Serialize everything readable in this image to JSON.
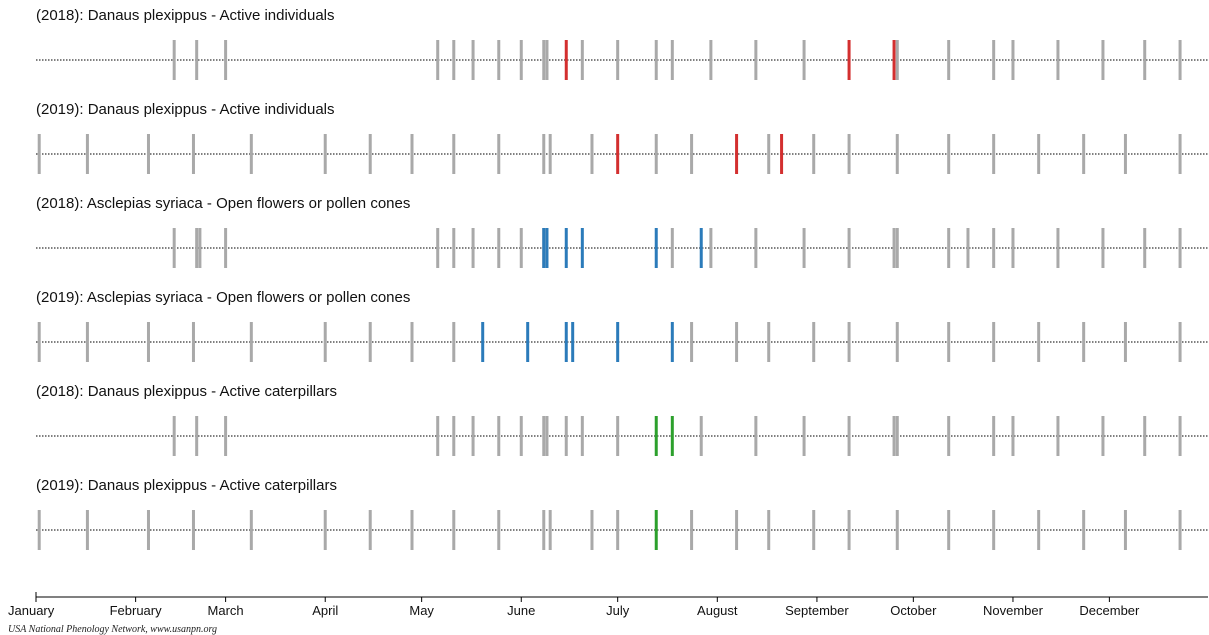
{
  "colors": {
    "no_observation": "#a9a9a9",
    "danaus_adults": "#d32f2f",
    "asclepias_flowers": "#2b7bba",
    "danaus_caterpillars": "#2ca02c",
    "baseline": "#000000"
  },
  "credit": "USA National Phenology Network, www.usanpn.org",
  "chart_data": {
    "type": "scatter",
    "title": "",
    "x_axis": {
      "type": "day-of-year",
      "range": [
        1,
        366
      ],
      "tick_labels": [
        "January",
        "February",
        "March",
        "April",
        "May",
        "June",
        "July",
        "August",
        "September",
        "October",
        "November",
        "December"
      ],
      "tick_days": [
        1,
        32,
        60,
        91,
        121,
        152,
        182,
        213,
        244,
        274,
        305,
        335
      ]
    },
    "series": [
      {
        "name": "(2018): Danaus plexippus - Active individuals",
        "color_key": "danaus_adults",
        "no_days": [
          44,
          51,
          60,
          126,
          131,
          137,
          145,
          152,
          159,
          160,
          171,
          182,
          194,
          199,
          211,
          225,
          240,
          269,
          285,
          299,
          305,
          319,
          333,
          346,
          357
        ],
        "yes_days": [
          166,
          254,
          268
        ]
      },
      {
        "name": "(2019): Danaus plexippus - Active individuals",
        "color_key": "danaus_adults",
        "no_days": [
          2,
          17,
          36,
          50,
          68,
          91,
          105,
          118,
          131,
          145,
          159,
          161,
          174,
          194,
          205,
          229,
          243,
          254,
          269,
          285,
          299,
          313,
          327,
          340,
          357
        ],
        "yes_days": [
          182,
          219,
          233
        ]
      },
      {
        "name": "(2018): Asclepias syriaca - Open flowers or pollen cones",
        "color_key": "asclepias_flowers",
        "no_days": [
          44,
          51,
          52,
          60,
          126,
          131,
          137,
          145,
          152,
          159,
          199,
          211,
          225,
          240,
          254,
          268,
          269,
          285,
          291,
          299,
          305,
          319,
          333,
          346,
          357
        ],
        "yes_days": [
          159,
          160,
          166,
          171,
          194,
          208
        ]
      },
      {
        "name": "(2019): Asclepias syriaca - Open flowers or pollen cones",
        "color_key": "asclepias_flowers",
        "no_days": [
          2,
          17,
          36,
          50,
          68,
          91,
          105,
          118,
          131,
          205,
          219,
          229,
          243,
          254,
          269,
          285,
          299,
          313,
          327,
          340,
          357
        ],
        "yes_days": [
          140,
          154,
          166,
          168,
          182,
          199
        ]
      },
      {
        "name": "(2018): Danaus plexippus - Active caterpillars",
        "color_key": "danaus_caterpillars",
        "no_days": [
          44,
          51,
          60,
          126,
          131,
          137,
          145,
          152,
          159,
          160,
          166,
          171,
          182,
          208,
          225,
          240,
          254,
          268,
          269,
          285,
          299,
          305,
          319,
          333,
          346,
          357
        ],
        "yes_days": [
          194,
          199
        ]
      },
      {
        "name": "(2019): Danaus plexippus - Active caterpillars",
        "color_key": "danaus_caterpillars",
        "no_days": [
          2,
          17,
          36,
          50,
          68,
          91,
          105,
          118,
          131,
          145,
          159,
          161,
          174,
          182,
          205,
          219,
          229,
          243,
          254,
          269,
          285,
          299,
          313,
          327,
          340,
          357
        ],
        "yes_days": [
          194
        ]
      }
    ]
  }
}
